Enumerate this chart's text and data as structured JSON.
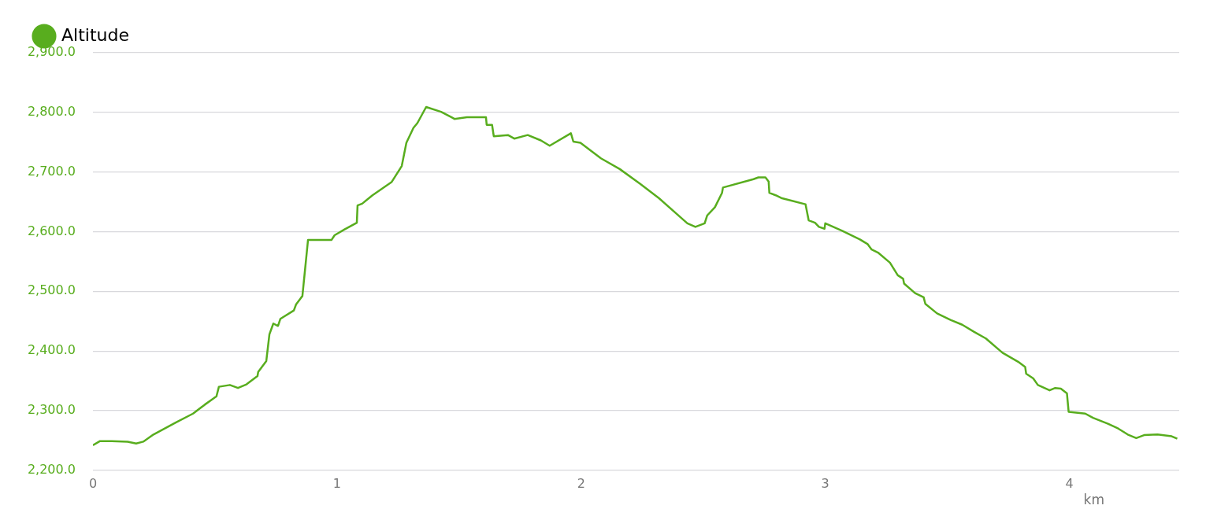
{
  "chart_data": {
    "type": "line",
    "xlabel": "km",
    "legend": "top left",
    "grid": "y",
    "marker": "none",
    "line_style": "solid",
    "xlim": [
      0,
      4.45
    ],
    "xticks": [
      0,
      1,
      2,
      3,
      4
    ],
    "ylim": [
      2200,
      2900
    ],
    "yticks": [
      {
        "value": 2200,
        "label": "2,200.0"
      },
      {
        "value": 2300,
        "label": "2,300.0"
      },
      {
        "value": 2400,
        "label": "2,400.0"
      },
      {
        "value": 2500,
        "label": "2,500.0"
      },
      {
        "value": 2600,
        "label": "2,600.0"
      },
      {
        "value": 2700,
        "label": "2,700.0"
      },
      {
        "value": 2800,
        "label": "2,800.0"
      },
      {
        "value": 2900,
        "label": "2,900.0"
      }
    ],
    "x": [
      0,
      0.029,
      0.077,
      0.142,
      0.177,
      0.206,
      0.248,
      0.339,
      0.41,
      0.458,
      0.506,
      0.516,
      0.561,
      0.594,
      0.629,
      0.674,
      0.677,
      0.71,
      0.723,
      0.739,
      0.758,
      0.768,
      0.823,
      0.832,
      0.852,
      0.858,
      0.881,
      0.977,
      0.99,
      1.032,
      1.081,
      1.084,
      1.103,
      1.145,
      1.223,
      1.265,
      1.284,
      1.313,
      1.329,
      1.365,
      1.426,
      1.468,
      1.481,
      1.532,
      1.61,
      1.613,
      1.635,
      1.642,
      1.7,
      1.726,
      1.781,
      1.835,
      1.871,
      1.958,
      1.968,
      1.997,
      2.081,
      2.158,
      2.242,
      2.319,
      2.435,
      2.468,
      2.506,
      2.516,
      2.548,
      2.577,
      2.581,
      2.706,
      2.726,
      2.755,
      2.768,
      2.771,
      2.797,
      2.823,
      2.919,
      2.932,
      2.958,
      2.974,
      2.997,
      3.0,
      3.071,
      3.142,
      3.174,
      3.19,
      3.216,
      3.265,
      3.297,
      3.319,
      3.323,
      3.368,
      3.403,
      3.41,
      3.458,
      3.513,
      3.561,
      3.61,
      3.658,
      3.726,
      3.79,
      3.819,
      3.823,
      3.852,
      3.871,
      3.919,
      3.942,
      3.965,
      3.99,
      3.997,
      4.065,
      4.097,
      4.158,
      4.2,
      4.239,
      4.274,
      4.306,
      4.361,
      4.419,
      4.442
    ],
    "series": [
      {
        "name": "Altitude",
        "color": "#58ad1e",
        "values": [
          2242,
          2249,
          2249,
          2248,
          2245,
          2248,
          2260,
          2280,
          2295,
          2310,
          2324,
          2340,
          2343,
          2338,
          2344,
          2358,
          2365,
          2383,
          2428,
          2446,
          2442,
          2454,
          2468,
          2478,
          2489,
          2492,
          2586,
          2586,
          2594,
          2604,
          2615,
          2644,
          2647,
          2661,
          2683,
          2710,
          2749,
          2774,
          2782,
          2809,
          2801,
          2792,
          2789,
          2792,
          2792,
          2779,
          2779,
          2760,
          2762,
          2756,
          2762,
          2753,
          2744,
          2765,
          2751,
          2749,
          2723,
          2705,
          2680,
          2656,
          2614,
          2608,
          2614,
          2627,
          2641,
          2665,
          2674,
          2688,
          2691,
          2691,
          2684,
          2665,
          2661,
          2656,
          2646,
          2619,
          2615,
          2608,
          2605,
          2614,
          2601,
          2587,
          2579,
          2570,
          2565,
          2548,
          2527,
          2521,
          2513,
          2497,
          2490,
          2479,
          2463,
          2452,
          2444,
          2432,
          2421,
          2397,
          2382,
          2373,
          2362,
          2354,
          2343,
          2334,
          2338,
          2337,
          2329,
          2298,
          2295,
          2288,
          2278,
          2270,
          2260,
          2254,
          2259,
          2260,
          2257,
          2253
        ]
      }
    ]
  }
}
